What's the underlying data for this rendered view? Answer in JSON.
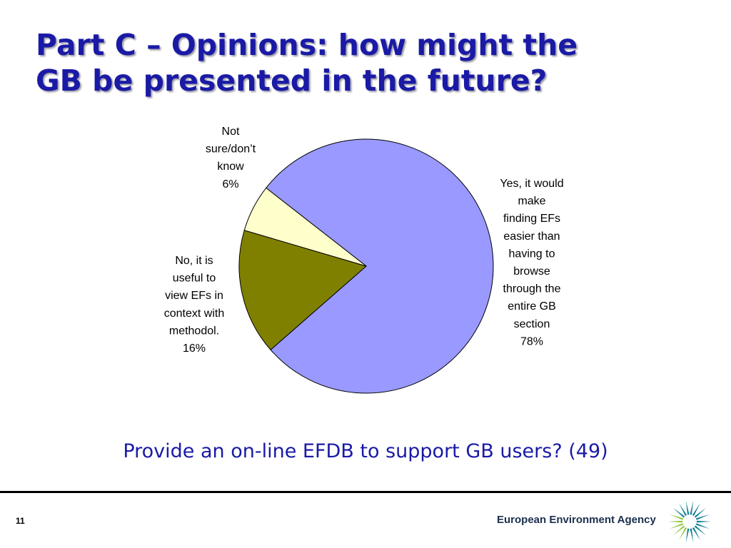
{
  "slide": {
    "title_lines": [
      "Part C – Opinions: how might the",
      "GB be presented in the future?"
    ],
    "question": "Provide an on-line EFDB to support GB users? (49)",
    "page_number": "11"
  },
  "footer": {
    "agency_name": "European Environment Agency",
    "logo_icon": "eea-sun-logo-icon",
    "logo_colors": [
      "#0b7d96",
      "#8cc63f"
    ]
  },
  "chart_data": {
    "type": "pie",
    "slices": [
      {
        "label_lines": [
          "Yes, it would",
          "make",
          "finding EFs",
          "easier than",
          "having to",
          "browse",
          "through the",
          "entire GB",
          "section",
          "78%"
        ],
        "value": 78,
        "color": "#9999ff"
      },
      {
        "label_lines": [
          "No, it is",
          "useful to",
          "view EFs in",
          "context with",
          "methodol.",
          "16%"
        ],
        "value": 16,
        "color": "#808000"
      },
      {
        "label_lines": [
          "Not",
          "sure/don’t",
          "know",
          "6%"
        ],
        "value": 6,
        "color": "#ffffcc"
      }
    ]
  }
}
